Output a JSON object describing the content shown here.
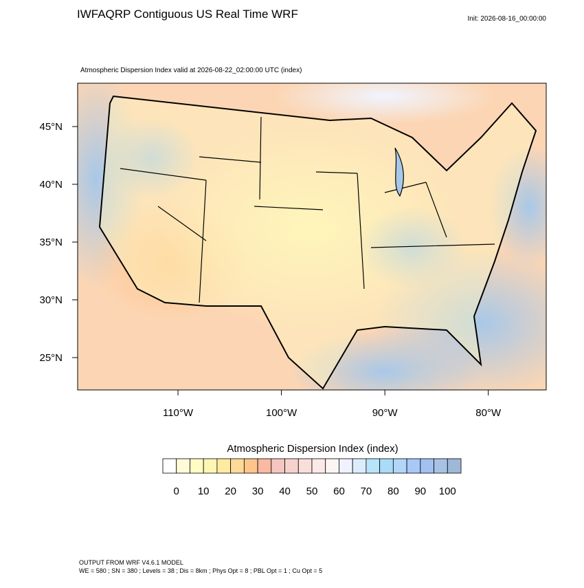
{
  "header": {
    "title": "IWFAQRP Contiguous US Real Time WRF",
    "init": "Init: 2026-08-16_00:00:00"
  },
  "map": {
    "subtitle": "Atmospheric Dispersion Index valid at 2026-08-22_02:00:00 UTC   (index)",
    "lonlim": [
      -119.7,
      -74.4
    ],
    "latlim": [
      22.2,
      48.75
    ],
    "lonticks": [
      {
        "value": -110,
        "label": "110°W"
      },
      {
        "value": -100,
        "label": "100°W"
      },
      {
        "value": -90,
        "label": "90°W"
      },
      {
        "value": -80,
        "label": "80°W"
      }
    ],
    "latticks": [
      {
        "value": 25,
        "label": "25°N"
      },
      {
        "value": 30,
        "label": "30°N"
      },
      {
        "value": 35,
        "label": "35°N"
      },
      {
        "value": 40,
        "label": "40°N"
      },
      {
        "value": 45,
        "label": "45°N"
      }
    ]
  },
  "colorbar": {
    "title": "Atmospheric Dispersion Index  (index)",
    "levels": [
      0,
      5,
      10,
      15,
      20,
      25,
      30,
      35,
      40,
      45,
      50,
      55,
      60,
      65,
      70,
      75,
      80,
      85,
      90,
      95,
      100
    ],
    "colors": [
      "#ffffff",
      "#fffbd8",
      "#fffcc4",
      "#fff6b4",
      "#ffeaa2",
      "#ffda96",
      "#ffc68c",
      "#fbb8a2",
      "#f5c6c0",
      "#f5d2cc",
      "#f8dfda",
      "#fae9e6",
      "#fdf4f4",
      "#f0f2ff",
      "#dcecfc",
      "#b8e4fa",
      "#a8dcf8",
      "#b2d6f8",
      "#a8c8f8",
      "#a2c0f0",
      "#a8c2e6",
      "#9fb8d8"
    ],
    "ticks": [
      0,
      10,
      20,
      30,
      40,
      50,
      60,
      70,
      80,
      90,
      100
    ]
  },
  "footer": {
    "line1": "OUTPUT FROM WRF V4.6.1 MODEL",
    "line2": "WE = 580 ; SN = 380 ; Levels = 38 ; Dis = 8km ; Phys Opt = 8 ; PBL Opt = 1 ; Cu Opt = 5"
  }
}
